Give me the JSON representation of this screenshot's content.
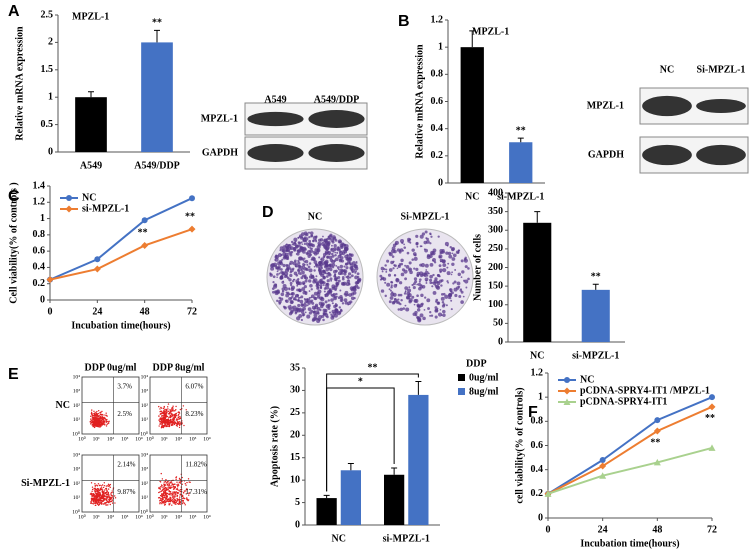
{
  "panels": [
    "A",
    "B",
    "C",
    "D",
    "E",
    "F"
  ],
  "chart_data": [
    {
      "type": "bar",
      "title": "MPZL-1",
      "y_label": "Relative mRNA expression",
      "categories": [
        "A549",
        "A549/DDP"
      ],
      "values": [
        1,
        2
      ],
      "errors": [
        0.1,
        0.22
      ],
      "colors": [
        "#000000",
        "#4472c4"
      ],
      "value_annotations": [
        null,
        "**"
      ],
      "ylim": [
        0,
        2.5
      ],
      "yticks": [
        0,
        0.5,
        1,
        1.5,
        2,
        2.5
      ]
    },
    {
      "type": "bar",
      "title": "MPZL-1",
      "y_label": "Relative mRNA expression",
      "categories": [
        "NC",
        "si-MPZL-1"
      ],
      "values": [
        1.0,
        0.3
      ],
      "errors": [
        0.12,
        0.03
      ],
      "colors": [
        "#000000",
        "#4472c4"
      ],
      "value_annotations": [
        null,
        "**"
      ],
      "ylim": [
        0,
        1.2
      ],
      "yticks": [
        0,
        0.2,
        0.4,
        0.6,
        0.8,
        1,
        1.2
      ]
    },
    {
      "type": "line",
      "y_label": "Cell viability(% of controls )",
      "x_label": "Incubation time(hours)",
      "x": [
        0,
        24,
        48,
        72
      ],
      "xlim": [
        0,
        72
      ],
      "xticks": [
        0,
        24,
        48,
        72
      ],
      "ylim": [
        0,
        1.4
      ],
      "yticks": [
        0,
        0.2,
        0.4,
        0.6,
        0.8,
        1,
        1.2,
        1.4
      ],
      "series": [
        {
          "name": "NC",
          "color": "#4472c4",
          "marker": "circle",
          "values": [
            0.25,
            0.5,
            0.98,
            1.25
          ],
          "annotations": [
            null,
            null,
            null,
            null
          ]
        },
        {
          "name": "si-MPZL-1",
          "color": "#ed7d31",
          "marker": "diamond",
          "values": [
            0.25,
            0.38,
            0.67,
            0.87
          ],
          "annotations": [
            null,
            null,
            "**",
            "**"
          ]
        }
      ]
    },
    {
      "type": "bar",
      "y_label": "Number of cells",
      "categories": [
        "NC",
        "si-MPZL-1"
      ],
      "values": [
        320,
        140
      ],
      "errors": [
        30,
        15
      ],
      "colors": [
        "#000000",
        "#4472c4"
      ],
      "value_annotations": [
        null,
        "**"
      ],
      "ylim": [
        0,
        400
      ],
      "yticks": [
        0,
        50,
        100,
        150,
        200,
        250,
        300,
        350,
        400
      ]
    },
    {
      "type": "grouped_bar",
      "y_label": "Apoptosis rate (%)",
      "legend_title": "DDP",
      "categories": [
        "NC",
        "si-MPZL-1"
      ],
      "series": [
        {
          "name": "0ug/ml",
          "color": "#000000",
          "values": [
            6,
            11.2
          ],
          "errors": [
            0.6,
            1.5
          ]
        },
        {
          "name": "8ug/ml",
          "color": "#4472c4",
          "values": [
            12.2,
            29
          ],
          "errors": [
            1.5,
            3
          ]
        }
      ],
      "comparisons": [
        "*",
        "**"
      ],
      "ylim": [
        0,
        35
      ],
      "yticks": [
        0,
        5,
        10,
        15,
        20,
        25,
        30,
        35
      ]
    },
    {
      "type": "line",
      "y_label": "cell viability(% of controls)",
      "x_label": "Incubation time(hours)",
      "x": [
        0,
        24,
        48,
        72
      ],
      "xlim": [
        0,
        72
      ],
      "xticks": [
        0,
        24,
        48,
        72
      ],
      "ylim": [
        0,
        1.2
      ],
      "yticks": [
        0,
        0.2,
        0.4,
        0.6,
        0.8,
        1,
        1.2
      ],
      "series": [
        {
          "name": "NC",
          "color": "#4472c4",
          "marker": "circle",
          "values": [
            0.2,
            0.48,
            0.81,
            1.0
          ],
          "annotations": [
            null,
            null,
            null,
            null
          ]
        },
        {
          "name": "pCDNA-SPRY4-IT1 /MPZL-1",
          "color": "#ed7d31",
          "marker": "diamond",
          "values": [
            0.2,
            0.43,
            0.72,
            0.92
          ],
          "annotations": [
            null,
            null,
            "**",
            "**"
          ]
        },
        {
          "name": "pCDNA-SPRY4-IT1",
          "color": "#a9d18e",
          "marker": "triangle",
          "values": [
            0.2,
            0.35,
            0.46,
            0.58
          ],
          "annotations": [
            null,
            null,
            null,
            null
          ]
        }
      ]
    }
  ],
  "blots": [
    {
      "lanes": [
        "A549",
        "A549/DDP"
      ],
      "rows": [
        "MPZL-1",
        "GAPDH"
      ]
    },
    {
      "lanes": [
        "NC",
        "Si-MPZL-1"
      ],
      "rows": [
        "MPZL-1",
        "GAPDH"
      ]
    }
  ],
  "colony": {
    "labels": [
      "NC",
      "Si-MPZL-1"
    ]
  },
  "flow": {
    "column_titles": [
      "DDP 0ug/ml",
      "DDP 8ug/ml"
    ],
    "row_titles": [
      "NC",
      "Si-MPZL-1"
    ],
    "quadrants": [
      [
        [
          "3.7%",
          "2.5%"
        ],
        [
          "6.07%",
          "8.23%"
        ]
      ],
      [
        [
          "2.14%",
          "9.87%"
        ],
        [
          "11.82%",
          "17.31%"
        ]
      ]
    ],
    "axis_ticks": [
      "10⁰",
      "10¹",
      "10²",
      "10³",
      "10⁴"
    ]
  }
}
